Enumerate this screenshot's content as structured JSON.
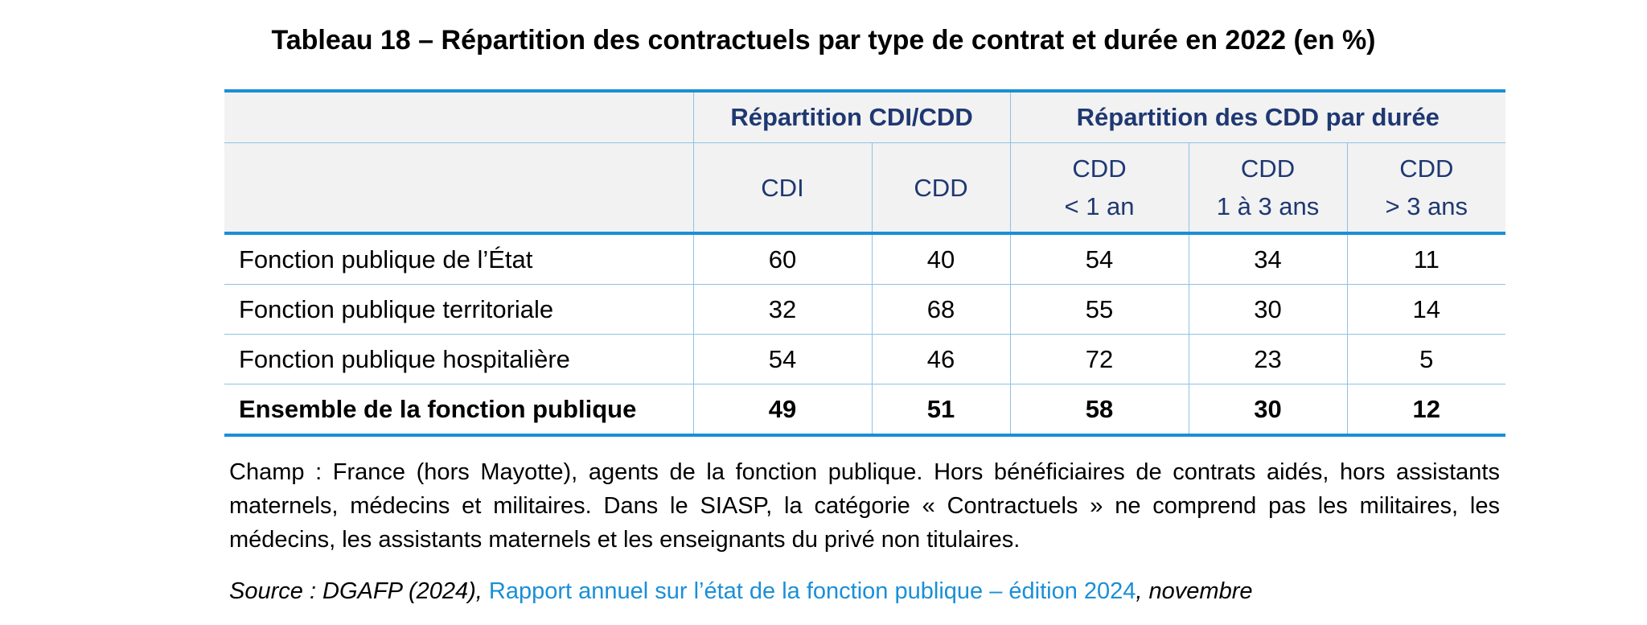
{
  "title": "Tableau 18 – Répartition des contractuels par type de contrat et durée en 2022 (en %)",
  "table": {
    "group_headers": [
      "",
      "Répartition CDI/CDD",
      "Répartition des CDD par durée"
    ],
    "columns": [
      {
        "line1": "CDI",
        "line2": ""
      },
      {
        "line1": "CDD",
        "line2": ""
      },
      {
        "line1": "CDD",
        "line2": "< 1 an"
      },
      {
        "line1": "CDD",
        "line2": "1 à 3 ans"
      },
      {
        "line1": "CDD",
        "line2": "> 3 ans"
      }
    ],
    "rows": [
      {
        "label": "Fonction publique de l’État",
        "values": [
          "60",
          "40",
          "54",
          "34",
          "11"
        ]
      },
      {
        "label": "Fonction publique territoriale",
        "values": [
          "32",
          "68",
          "55",
          "30",
          "14"
        ]
      },
      {
        "label": "Fonction publique hospitalière",
        "values": [
          "54",
          "46",
          "72",
          "23",
          "5"
        ]
      },
      {
        "label": "Ensemble de la fonction publique",
        "values": [
          "49",
          "51",
          "58",
          "30",
          "12"
        ]
      }
    ]
  },
  "champ": "Champ : France (hors Mayotte), agents de la fonction publique. Hors bénéficiaires de contrats aidés, hors assistants maternels, médecins et militaires. Dans le SIASP, la catégorie « Contractuels » ne comprend pas les militaires, les médecins, les assistants maternels et les enseignants du privé non titulaires.",
  "source": {
    "prefix": "Source : DGAFP (2024), ",
    "link_text": "Rapport annuel sur l’état de la fonction publique – édition 2024",
    "suffix": ", novembre"
  },
  "colors": {
    "header_text": "#1f3872",
    "accent_border": "#1a8fd6",
    "grid": "#8fc1e4",
    "header_bg": "#f2f2f2",
    "link": "#1a8fd6"
  }
}
